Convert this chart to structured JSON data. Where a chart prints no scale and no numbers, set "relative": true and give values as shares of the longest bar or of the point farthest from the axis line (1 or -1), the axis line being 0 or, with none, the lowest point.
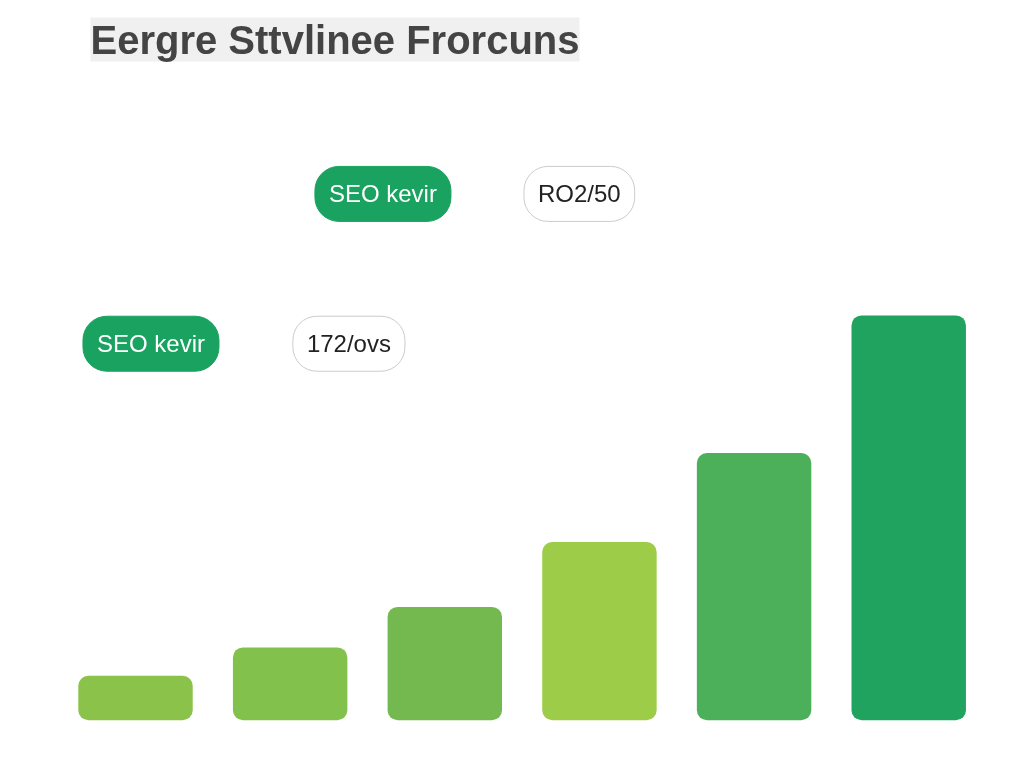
{
  "chart_data": {
    "type": "bar",
    "title": "Eergre Sttvlinee Frorcuns",
    "relative": true,
    "categories": [
      null,
      null,
      null,
      null,
      null,
      null
    ],
    "values": [
      0.11,
      0.18,
      0.28,
      0.44,
      0.66,
      1
    ],
    "colors": [
      "#8bc34a",
      "#82c14b",
      "#74b94f",
      "#9ccc48",
      "#4cb05a",
      "#1fa35e"
    ],
    "annotations": [
      "SEO kevir",
      "172/ovs",
      "SEO kevir",
      "RO2/50"
    ],
    "grid": false
  }
}
